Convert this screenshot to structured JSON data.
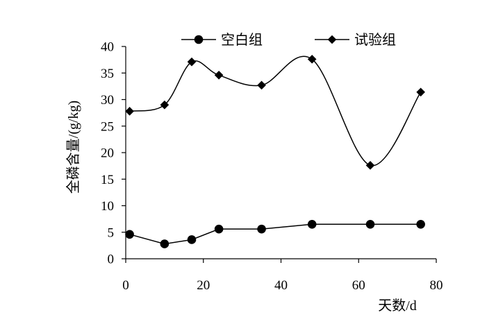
{
  "chart_data": {
    "type": "line",
    "title": "",
    "xlabel": "天数/d",
    "ylabel": "全磷含量/(g/kg)",
    "xlim": [
      0,
      80
    ],
    "ylim": [
      0,
      40
    ],
    "x_ticks": [
      0,
      20,
      40,
      60,
      80
    ],
    "y_ticks": [
      0,
      5,
      10,
      15,
      20,
      25,
      30,
      35,
      40
    ],
    "grid": false,
    "legend_position": "top",
    "series": [
      {
        "name": "空白组",
        "marker": "circle",
        "smooth": false,
        "x": [
          1,
          10,
          17,
          24,
          35,
          48,
          63,
          76
        ],
        "y": [
          4.6,
          2.8,
          3.6,
          5.6,
          5.6,
          6.5,
          6.5,
          6.5
        ]
      },
      {
        "name": "试验组",
        "marker": "diamond",
        "smooth": true,
        "x": [
          1,
          10,
          17,
          24,
          35,
          48,
          63,
          76
        ],
        "y": [
          27.8,
          29.0,
          37.1,
          34.6,
          32.7,
          37.6,
          17.6,
          31.4
        ]
      }
    ]
  }
}
